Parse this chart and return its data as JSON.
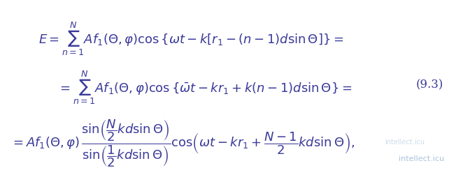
{
  "eq1": "E = \\sum_{n=1}^{N} Af_1(\\Theta,\\varphi)\\cos\\{\\omega t - k[r_1 - (n-1)d\\sin\\Theta]\\} =",
  "eq2": "= \\sum_{n=1}^{N} Af_1(\\Theta,\\varphi)\\cos\\{\\overline{\\omega} t - kr_1 + k(n-1)d\\sin\\Theta\\} =",
  "eq3": "= Af_1(\\Theta,\\varphi)\\,\\dfrac{\\sin\\!\\left(\\dfrac{N}{2}kd\\sin\\Theta\\right)}{\\sin\\!\\left(\\dfrac{1}{2}kd\\sin\\Theta\\right)}\\cos\\!\\left(\\omega t - kr_1 + \\dfrac{N-1}{2}kd\\sin\\Theta\\right),",
  "eq_number": "(9.3)",
  "text_color": "#3a3a9a",
  "bg_color": "#ffffff",
  "eq_number_color": "#3a3a9a",
  "fontsize_main": 13,
  "fontsize_eqnum": 12
}
